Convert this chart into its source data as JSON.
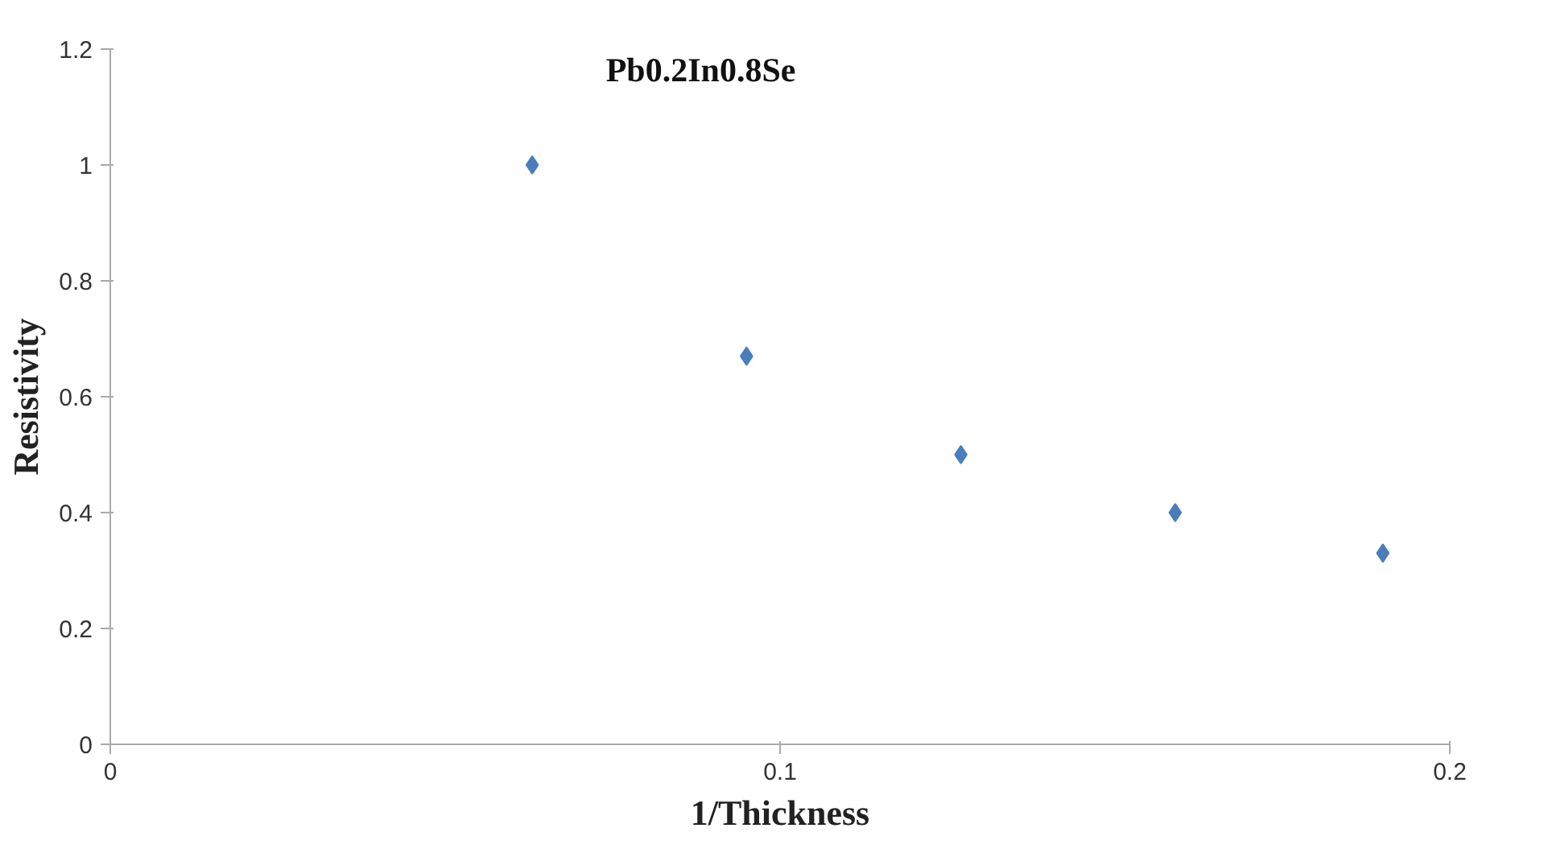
{
  "chart_data": {
    "type": "scatter",
    "title": "Pb0.2In0.8Se",
    "xlabel": "1/Thickness",
    "ylabel": "Resistivity",
    "x": [
      0.063,
      0.095,
      0.127,
      0.159,
      0.19
    ],
    "series": [
      {
        "color": "#4a7ebb",
        "values": [
          1.0,
          0.67,
          0.5,
          0.4,
          0.33
        ]
      }
    ],
    "xlim": [
      0,
      0.2
    ],
    "xticks": [
      0,
      0.1,
      0.2
    ],
    "ylim": [
      0,
      1.2
    ],
    "yticks": [
      0,
      0.2,
      0.4,
      0.6,
      0.8,
      1,
      1.2
    ],
    "marker": "diamond",
    "grid": false
  }
}
